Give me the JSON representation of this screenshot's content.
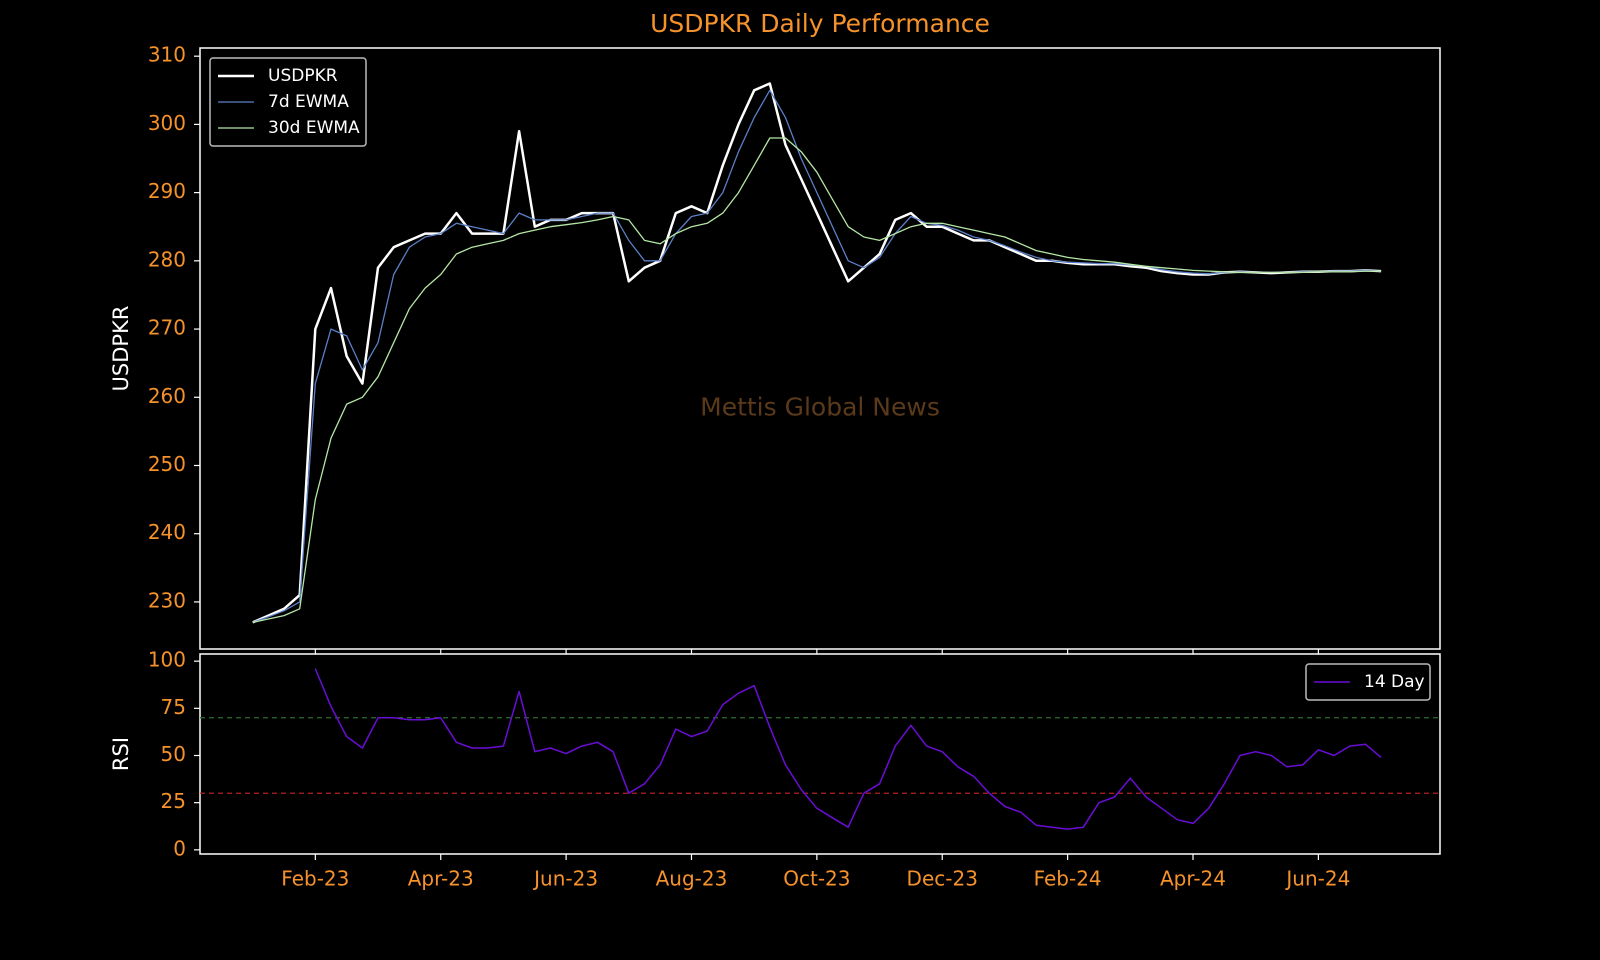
{
  "chart_data": [
    {
      "type": "line",
      "title": "USDPKR Daily Performance",
      "ylabel": "USDPKR",
      "watermark": "Mettis Global News",
      "legend": "upper left",
      "x": [
        0,
        0.25,
        0.5,
        0.75,
        1,
        1.25,
        1.5,
        1.75,
        2,
        2.25,
        2.5,
        2.75,
        3,
        3.25,
        3.5,
        3.75,
        4,
        4.25,
        4.5,
        4.75,
        5,
        5.25,
        5.5,
        5.75,
        6,
        6.25,
        6.5,
        6.75,
        7,
        7.25,
        7.5,
        7.75,
        8,
        8.25,
        8.5,
        8.75,
        9,
        9.25,
        9.5,
        9.75,
        10,
        10.25,
        10.5,
        10.75,
        11,
        11.25,
        11.5,
        11.75,
        12,
        12.25,
        12.5,
        12.75,
        13,
        13.25,
        13.5,
        13.75,
        14,
        14.25,
        14.5,
        14.75,
        15,
        15.25,
        15.5,
        15.75,
        16,
        16.25,
        16.5,
        16.75,
        17,
        17.25,
        17.5,
        17.75,
        18
      ],
      "series": [
        {
          "name": "USDPKR",
          "color": "#ffffff",
          "width": 2.5,
          "values": [
            227,
            228,
            229,
            231,
            270,
            276,
            266,
            262,
            279,
            282,
            283,
            284,
            284,
            287,
            284,
            284,
            284,
            299,
            285,
            286,
            286,
            287,
            287,
            287,
            277,
            279,
            280,
            287,
            288,
            287,
            294,
            300,
            305,
            306,
            297,
            292,
            287,
            282,
            277,
            279,
            281,
            286,
            287,
            285,
            285,
            284,
            283,
            283,
            282,
            281,
            280,
            280,
            279.7,
            279.5,
            279.5,
            279.5,
            279.2,
            279,
            278.5,
            278.2,
            278,
            278,
            278.3,
            278.4,
            278.3,
            278.2,
            278.3,
            278.4,
            278.4,
            278.5,
            278.5,
            278.6,
            278.5
          ]
        },
        {
          "name": "7d EWMA",
          "color": "#5b7fc7",
          "width": 1.3,
          "values": [
            227,
            227.8,
            228.7,
            230,
            262,
            270,
            269,
            264,
            268,
            278,
            282,
            283.5,
            284,
            285.5,
            285,
            284.5,
            284,
            287,
            286,
            286,
            286,
            286.5,
            287,
            287,
            283,
            280,
            280,
            284,
            286.5,
            287,
            290,
            296,
            301,
            305,
            301,
            295,
            290,
            285,
            280,
            279,
            280.5,
            284,
            286.5,
            285.5,
            285.2,
            284.5,
            283.5,
            283,
            282.2,
            281.3,
            280.5,
            280,
            279.8,
            279.7,
            279.6,
            279.6,
            279.4,
            279.2,
            278.7,
            278.4,
            278.2,
            278.1,
            278.3,
            278.4,
            278.3,
            278.3,
            278.3,
            278.4,
            278.4,
            278.5,
            278.5,
            278.6,
            278.5
          ]
        },
        {
          "name": "30d EWMA",
          "color": "#b5e6a5",
          "width": 1.3,
          "values": [
            227,
            227.5,
            228,
            229,
            245,
            254,
            259,
            260,
            263,
            268,
            273,
            276,
            278,
            281,
            282,
            282.5,
            283,
            284,
            284.5,
            285,
            285.3,
            285.6,
            286,
            286.5,
            286,
            283,
            282.5,
            284,
            285,
            285.5,
            287,
            290,
            294,
            298,
            298,
            296,
            293,
            289,
            285,
            283.5,
            283,
            284,
            285,
            285.5,
            285.5,
            285,
            284.5,
            284,
            283.5,
            282.5,
            281.5,
            281,
            280.5,
            280.2,
            280,
            279.8,
            279.5,
            279.2,
            279,
            278.8,
            278.6,
            278.5,
            278.4,
            278.3,
            278.3,
            278.3,
            278.3,
            278.3,
            278.4,
            278.4,
            278.4,
            278.5,
            278.5
          ]
        }
      ],
      "xlim": [
        -0.84,
        18.94
      ],
      "ylim": [
        223.1,
        311.2
      ],
      "yticks": [
        230,
        240,
        250,
        260,
        270,
        280,
        290,
        300,
        310
      ]
    },
    {
      "type": "line",
      "ylabel": "RSI",
      "legend": "upper right",
      "x": [
        0,
        0.25,
        0.5,
        0.75,
        1,
        1.25,
        1.5,
        1.75,
        2,
        2.25,
        2.5,
        2.75,
        3,
        3.25,
        3.5,
        3.75,
        4,
        4.25,
        4.5,
        4.75,
        5,
        5.25,
        5.5,
        5.75,
        6,
        6.25,
        6.5,
        6.75,
        7,
        7.25,
        7.5,
        7.75,
        8,
        8.25,
        8.5,
        8.75,
        9,
        9.25,
        9.5,
        9.75,
        10,
        10.25,
        10.5,
        10.75,
        11,
        11.25,
        11.5,
        11.75,
        12,
        12.25,
        12.5,
        12.75,
        13,
        13.25,
        13.5,
        13.75,
        14,
        14.25,
        14.5,
        14.75,
        15,
        15.25,
        15.5,
        15.75,
        16,
        16.25,
        16.5,
        16.75,
        17,
        17.25,
        17.5,
        17.75,
        18
      ],
      "series": [
        {
          "name": "14 Day",
          "color": "#6a0dd6",
          "width": 1.5,
          "values": [
            null,
            null,
            null,
            null,
            96,
            76,
            60,
            54,
            70,
            70,
            69,
            69,
            70,
            57,
            54,
            54,
            55,
            84,
            52,
            54,
            51,
            55,
            57,
            52,
            30,
            35,
            45,
            64,
            60,
            63,
            77,
            83,
            87,
            65,
            45,
            32,
            22,
            17,
            12,
            30,
            35,
            55,
            66,
            55,
            52,
            44,
            39,
            30,
            23,
            20,
            13,
            12,
            11,
            12,
            25,
            28,
            38,
            28,
            22,
            16,
            14,
            22,
            35,
            50,
            52,
            50,
            44,
            45,
            53,
            50,
            55,
            56,
            49
          ]
        }
      ],
      "hlines": [
        {
          "value": 70,
          "color": "#2e6b2e"
        },
        {
          "value": 30,
          "color": "#b52222"
        }
      ],
      "xlim": [
        -0.84,
        18.94
      ],
      "ylim": [
        -2.2,
        103.8
      ],
      "xticks": [
        {
          "value": 1,
          "label": "Feb-23"
        },
        {
          "value": 3,
          "label": "Apr-23"
        },
        {
          "value": 5,
          "label": "Jun-23"
        },
        {
          "value": 7,
          "label": "Aug-23"
        },
        {
          "value": 9,
          "label": "Oct-23"
        },
        {
          "value": 11,
          "label": "Dec-23"
        },
        {
          "value": 13,
          "label": "Feb-24"
        },
        {
          "value": 15,
          "label": "Apr-24"
        },
        {
          "value": 17,
          "label": "Jun-24"
        }
      ],
      "yticks": [
        0,
        25,
        50,
        75,
        100
      ]
    }
  ]
}
